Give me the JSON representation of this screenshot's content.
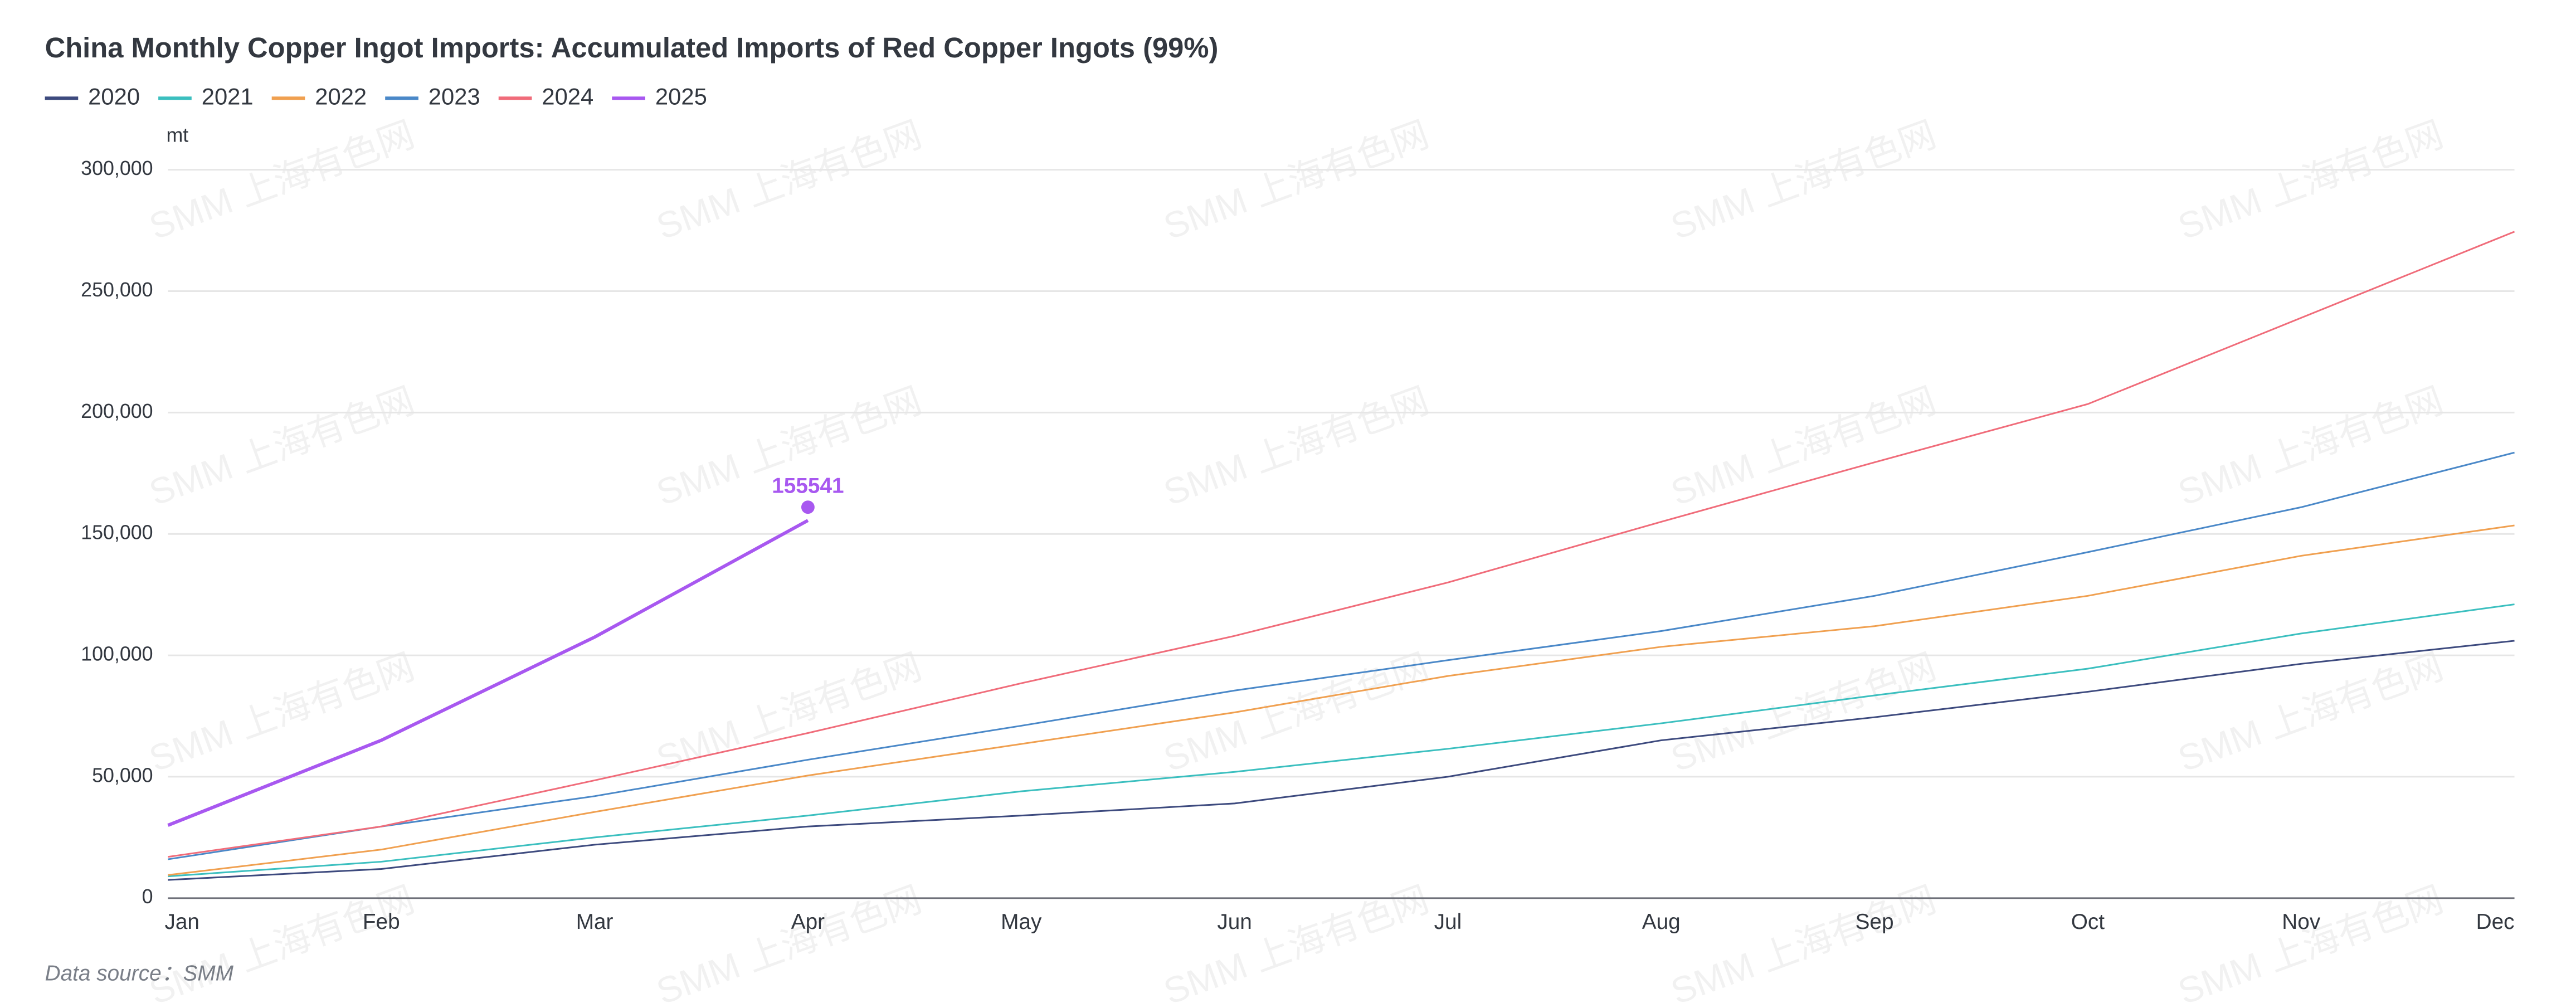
{
  "chart_data": {
    "type": "line",
    "title": "China Monthly Copper Ingot Imports: Accumulated Imports of Red Copper Ingots (99%)",
    "y_axis_label": "mt",
    "source": "Data source：SMM",
    "watermark": "SMM 上海有色网",
    "categories": [
      "Jan",
      "Feb",
      "Mar",
      "Apr",
      "May",
      "Jun",
      "Jul",
      "Aug",
      "Sep",
      "Oct",
      "Nov",
      "Dec"
    ],
    "series": [
      {
        "name": "2020",
        "color": "#3d4a7e",
        "values": [
          7500,
          12000,
          22000,
          29500,
          34000,
          39000,
          50000,
          65000,
          74500,
          85000,
          96500,
          106000
        ]
      },
      {
        "name": "2021",
        "color": "#3bbfbf",
        "values": [
          9000,
          15000,
          25000,
          34000,
          44000,
          52000,
          61500,
          72000,
          83500,
          94500,
          109000,
          121000
        ]
      },
      {
        "name": "2022",
        "color": "#f0a050",
        "values": [
          9500,
          20000,
          35500,
          50500,
          63500,
          76500,
          91500,
          103500,
          112000,
          124500,
          141000,
          153500
        ]
      },
      {
        "name": "2023",
        "color": "#4a88c8",
        "values": [
          16000,
          29500,
          42000,
          57000,
          71000,
          85500,
          98000,
          110000,
          124500,
          142500,
          161000,
          183500
        ]
      },
      {
        "name": "2024",
        "color": "#f06c7a",
        "values": [
          17000,
          29500,
          48500,
          68000,
          88500,
          108000,
          130000,
          155000,
          179500,
          203500,
          239000,
          274500
        ]
      },
      {
        "name": "2025",
        "color": "#a858f0",
        "values": [
          30000,
          65000,
          107500,
          155541,
          null,
          null,
          null,
          null,
          null,
          null,
          null,
          null
        ]
      }
    ],
    "ylim": [
      0,
      300000
    ],
    "yticks": [
      0,
      {
        "value": 50000,
        "label": "50,000"
      },
      {
        "value": 100000,
        "label": "100,000"
      },
      {
        "value": 150000,
        "label": "150,000"
      },
      {
        "value": 200000,
        "label": "200,000"
      },
      {
        "value": 250000,
        "label": "250,000"
      },
      {
        "value": 300000,
        "label": "300,000"
      }
    ],
    "grid": true
  }
}
